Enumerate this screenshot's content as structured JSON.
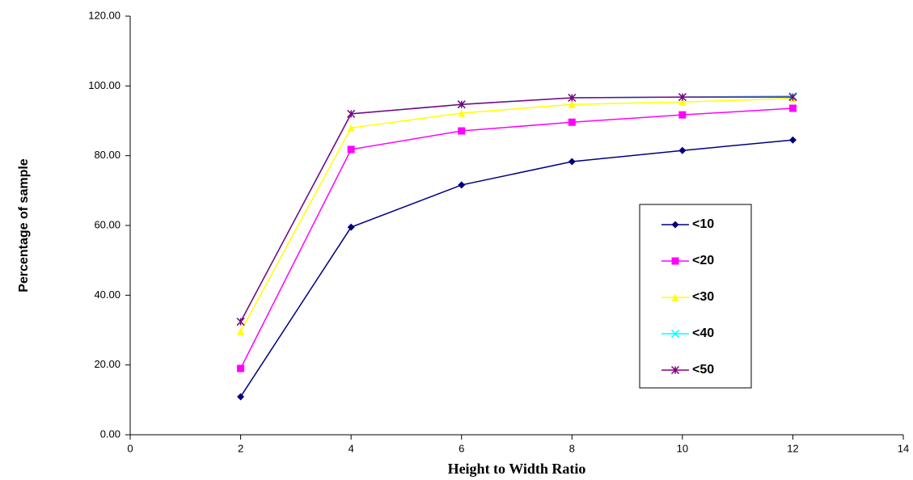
{
  "chart_data": {
    "type": "line",
    "x_label": "Height to Width Ratio",
    "y_label": "Percentage of sample",
    "x": [
      2,
      4,
      6,
      8,
      10,
      12
    ],
    "series": [
      {
        "name": "<10",
        "color": "#000080",
        "marker": "diamond",
        "values": [
          10.9,
          59.5,
          71.6,
          78.3,
          81.5,
          84.5
        ]
      },
      {
        "name": "<20",
        "color": "#ff00ff",
        "marker": "square",
        "values": [
          19.0,
          81.8,
          87.1,
          89.6,
          91.7,
          93.6
        ]
      },
      {
        "name": "<30",
        "color": "#ffff00",
        "marker": "triangle",
        "values": [
          29.6,
          88.0,
          92.2,
          94.7,
          95.4,
          96.4
        ]
      },
      {
        "name": "<40",
        "color": "#00ffff",
        "marker": "x",
        "values": [
          32.4,
          92.0,
          94.7,
          96.6,
          96.8,
          97.1
        ]
      },
      {
        "name": "<50",
        "color": "#800080",
        "marker": "star",
        "values": [
          32.4,
          92.0,
          94.7,
          96.6,
          96.8,
          96.8
        ]
      }
    ],
    "xlim": [
      0,
      14
    ],
    "xticks": [
      0,
      2,
      4,
      6,
      8,
      10,
      12,
      14
    ],
    "ylim": [
      0,
      120
    ],
    "yticks": [
      {
        "value": 0,
        "label": "0.00"
      },
      {
        "value": 20,
        "label": "20.00"
      },
      {
        "value": 40,
        "label": "40.00"
      },
      {
        "value": 60,
        "label": "60.00"
      },
      {
        "value": 80,
        "label": "80.00"
      },
      {
        "value": 100,
        "label": "100.00"
      },
      {
        "value": 120,
        "label": "120.00"
      }
    ],
    "grid": false
  }
}
